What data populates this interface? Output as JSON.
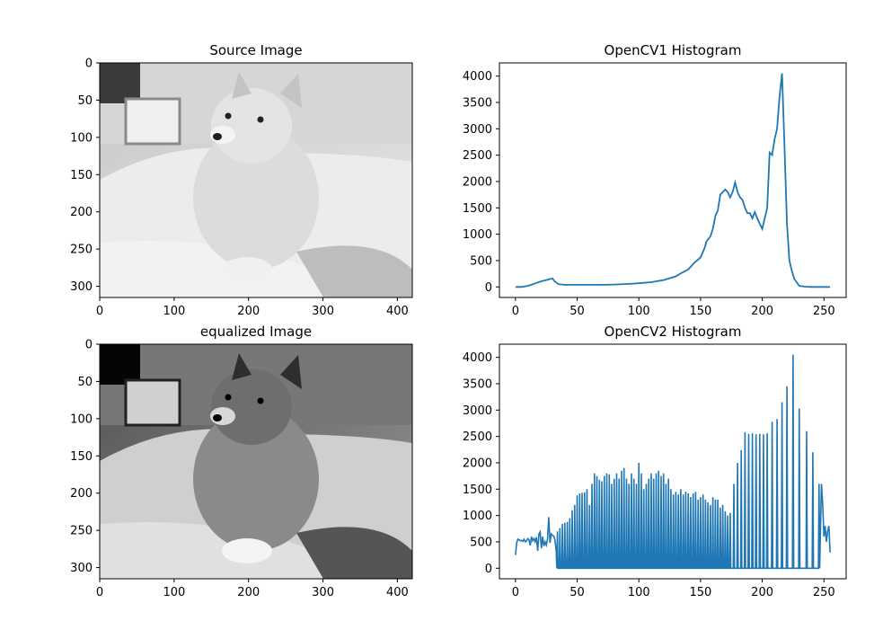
{
  "panels": [
    {
      "title": "Source Image",
      "kind": "image",
      "image_desc": "grayscale shiba inu dog",
      "xticks": [
        "0",
        "100",
        "200",
        "300",
        "400"
      ],
      "yticks": [
        "0",
        "50",
        "100",
        "150",
        "200",
        "250",
        "300"
      ]
    },
    {
      "title": "OpenCV1 Histogram",
      "kind": "line",
      "xticks": [
        "0",
        "50",
        "100",
        "150",
        "200",
        "250"
      ],
      "yticks": [
        "0",
        "500",
        "1000",
        "1500",
        "2000",
        "2500",
        "3000",
        "3500",
        "4000"
      ]
    },
    {
      "title": "equalized Image",
      "kind": "image",
      "image_desc": "histogram-equalized grayscale shiba inu dog",
      "xticks": [
        "0",
        "100",
        "200",
        "300",
        "400"
      ],
      "yticks": [
        "0",
        "50",
        "100",
        "150",
        "200",
        "250",
        "300"
      ]
    },
    {
      "title": "OpenCV2 Histogram",
      "kind": "line",
      "xticks": [
        "0",
        "50",
        "100",
        "150",
        "200",
        "250"
      ],
      "yticks": [
        "0",
        "500",
        "1000",
        "1500",
        "2000",
        "2500",
        "3000",
        "3500",
        "4000"
      ]
    }
  ],
  "colors": {
    "line": "#1f77b4",
    "axes": "#000000",
    "background": "#ffffff"
  },
  "chart_data": [
    {
      "type": "heatmap",
      "title": "Source Image",
      "xlim": [
        0,
        420
      ],
      "ylim": [
        315,
        0
      ],
      "xticks": [
        0,
        100,
        200,
        300,
        400
      ],
      "yticks": [
        0,
        50,
        100,
        150,
        200,
        250,
        300
      ]
    },
    {
      "type": "line",
      "title": "OpenCV1 Histogram",
      "xlim": [
        -13,
        268
      ],
      "ylim": [
        -200,
        4250
      ],
      "xticks": [
        0,
        50,
        100,
        150,
        200,
        250
      ],
      "yticks": [
        0,
        500,
        1000,
        1500,
        2000,
        2500,
        3000,
        3500,
        4000
      ],
      "series": [
        {
          "x": [
            0,
            5,
            10,
            15,
            20,
            25,
            28,
            30,
            32,
            35,
            40,
            50,
            60,
            70,
            80,
            90,
            100,
            110,
            120,
            130,
            135,
            140,
            145,
            148,
            150,
            153,
            155,
            158,
            160,
            162,
            164,
            166,
            168,
            170,
            172,
            174,
            176,
            178,
            180,
            182,
            184,
            186,
            188,
            190,
            192,
            194,
            196,
            198,
            200,
            202,
            204,
            206,
            208,
            210,
            212,
            214,
            216,
            218,
            220,
            222,
            224,
            226,
            230,
            235,
            240,
            245,
            250,
            255
          ],
          "y": [
            0,
            0,
            20,
            60,
            100,
            130,
            150,
            160,
            100,
            50,
            40,
            40,
            40,
            40,
            45,
            55,
            70,
            90,
            130,
            200,
            270,
            330,
            460,
            520,
            560,
            720,
            870,
            960,
            1100,
            1350,
            1450,
            1750,
            1800,
            1850,
            1800,
            1700,
            1800,
            1980,
            1800,
            1700,
            1650,
            1500,
            1400,
            1400,
            1300,
            1420,
            1300,
            1200,
            1100,
            1300,
            1500,
            2550,
            2500,
            2800,
            3000,
            3600,
            4050,
            2700,
            1200,
            500,
            300,
            150,
            20,
            5,
            0,
            0,
            0,
            0
          ]
        }
      ]
    },
    {
      "type": "heatmap",
      "title": "equalized Image",
      "xlim": [
        0,
        420
      ],
      "ylim": [
        315,
        0
      ],
      "xticks": [
        0,
        100,
        200,
        300,
        400
      ],
      "yticks": [
        0,
        50,
        100,
        150,
        200,
        250,
        300
      ]
    },
    {
      "type": "line",
      "title": "OpenCV2 Histogram",
      "xlim": [
        -13,
        268
      ],
      "ylim": [
        -200,
        4250
      ],
      "xticks": [
        0,
        50,
        100,
        150,
        200,
        250
      ],
      "yticks": [
        0,
        500,
        1000,
        1500,
        2000,
        2500,
        3000,
        3500,
        4000
      ],
      "series": [
        {
          "dense": {
            "x": [
              0,
              1,
              2,
              3,
              4,
              5,
              6,
              7,
              8,
              9,
              10,
              11,
              12,
              13,
              14,
              15,
              16,
              17,
              18,
              19,
              20,
              21,
              22,
              23,
              24,
              25,
              26,
              27,
              28,
              29,
              30,
              31,
              32,
              33
            ],
            "y": [
              250,
              480,
              550,
              540,
              520,
              530,
              510,
              550,
              500,
              520,
              560,
              540,
              430,
              600,
              520,
              560,
              500,
              590,
              330,
              650,
              690,
              380,
              600,
              420,
              500,
              440,
              560,
              970,
              480,
              650,
              620,
              610,
              540,
              330
            ]
          },
          "spikes": {
            "x": [
              34,
              36,
              38,
              40,
              42,
              44,
              46,
              48,
              50,
              52,
              54,
              56,
              58,
              60,
              62,
              64,
              66,
              68,
              70,
              72,
              74,
              76,
              78,
              80,
              82,
              84,
              86,
              88,
              90,
              92,
              94,
              96,
              98,
              100,
              102,
              104,
              106,
              108,
              110,
              112,
              114,
              116,
              118,
              120,
              122,
              124,
              126,
              128,
              130,
              132,
              134,
              136,
              138,
              140,
              142,
              144,
              146,
              148,
              150,
              152,
              154,
              156,
              158,
              160,
              162,
              164,
              166,
              168,
              170,
              172,
              174,
              177,
              180,
              183,
              186,
              189,
              192,
              195,
              198,
              201,
              204,
              208,
              212,
              216,
              220,
              225,
              230,
              236,
              241,
              246
            ],
            "y": [
              700,
              760,
              840,
              860,
              880,
              950,
              1100,
              1200,
              1380,
              1420,
              1430,
              1440,
              1500,
              1200,
              1600,
              1800,
              1750,
              1680,
              1650,
              1750,
              1800,
              1780,
              1600,
              1700,
              1800,
              1700,
              1850,
              1900,
              1700,
              1600,
              1800,
              1700,
              1600,
              2000,
              1800,
              1500,
              1600,
              1700,
              1800,
              1700,
              1800,
              1850,
              1750,
              1800,
              1600,
              1700,
              1500,
              1400,
              1450,
              1400,
              1500,
              1400,
              1450,
              1420,
              1350,
              1420,
              1450,
              1300,
              1350,
              1400,
              1300,
              1250,
              1200,
              1350,
              1300,
              1300,
              1150,
              1200,
              1080,
              1000,
              1050,
              1600,
              2000,
              2240,
              2580,
              2550,
              2560,
              2540,
              2550,
              2540,
              2560,
              2780,
              2830,
              3150,
              3450,
              4050,
              3030,
              2600,
              2200,
              1600
            ]
          },
          "baseline": 0,
          "tail": {
            "x": [
              248,
              249,
              250,
              251,
              252,
              253,
              254,
              255
            ],
            "y": [
              1600,
              1200,
              600,
              800,
              500,
              700,
              800,
              300
            ]
          }
        }
      ]
    }
  ]
}
